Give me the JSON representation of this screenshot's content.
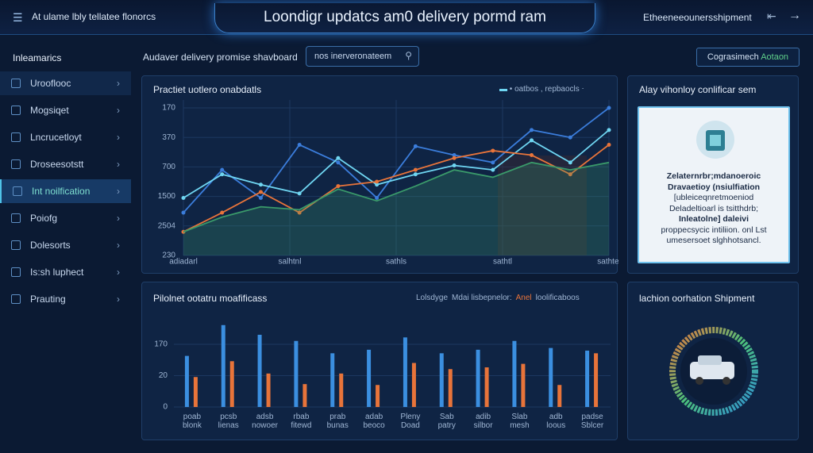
{
  "header": {
    "brand": "At ulame lbly tellatee flonorcs",
    "title": "Loondigr updatcs am0 delivery pormd ram",
    "right": "Etheeneeounersshipment"
  },
  "sidebar": {
    "heading": "Inleamarics",
    "items": [
      "Urooflooc",
      "Mogsiqet",
      "Lncrucetloyt",
      "Droseesotstt",
      "Int noilfication",
      "Poiofg",
      "Dolesorts",
      "Is:sh luphect",
      "Prauting"
    ],
    "active": 4
  },
  "toolbar": {
    "label": "Audaver delivery promise shavboard",
    "search": "nos inerveronateem",
    "button": "Cograsimech",
    "button_accent": "Aotaon"
  },
  "line_chart": {
    "type": "line",
    "title": "Practiet uotlero onabdatls",
    "legend": "oatbos , repbaocls",
    "ylabels": [
      "170",
      "370",
      "700",
      "1500",
      "2504",
      "230"
    ],
    "xlabels": [
      "adiadarl",
      "salhtnl",
      "sathls",
      "sathtl",
      "sathtel"
    ],
    "ylim": [
      0,
      100
    ],
    "series": [
      {
        "color": "#3b7ddb",
        "values": [
          29,
          58,
          39,
          75,
          63,
          39,
          74,
          68,
          63,
          85,
          80,
          100
        ]
      },
      {
        "color": "#6fd6f2",
        "values": [
          39,
          55,
          48,
          42,
          66,
          48,
          55,
          61,
          58,
          78,
          63,
          85
        ]
      },
      {
        "color": "#e8743a",
        "values": [
          16,
          29,
          43,
          29,
          47,
          50,
          58,
          66,
          71,
          68,
          55,
          75
        ]
      },
      {
        "color": "#3a9a6a",
        "area": true,
        "values": [
          16,
          26,
          33,
          31,
          45,
          37,
          47,
          58,
          53,
          63,
          58,
          63
        ]
      }
    ]
  },
  "bar_chart": {
    "type": "bar",
    "title": "Pilolnet ootatru moafificass",
    "legend": [
      "Lolsdyge",
      "Mdai lisbepnelor:",
      "Anel",
      "loolificaboos"
    ],
    "ylabels": [
      "170",
      "20",
      "0"
    ],
    "categories": [
      "poab blonk",
      "pcsb lienas",
      "adsb nowoer",
      "rbab fitewd",
      "prab bunas",
      "adab beoco",
      "Pleny Doad",
      "Sab patry",
      "adib silbor",
      "Slab mesh",
      "adb loous",
      "padse Sblcer"
    ],
    "ylim": [
      0,
      100
    ],
    "series": [
      {
        "color": "#3b8fe0",
        "values": [
          58,
          93,
          82,
          75,
          61,
          65,
          79,
          61,
          65,
          75,
          67,
          64
        ]
      },
      {
        "color": "#e8743a",
        "values": [
          34,
          52,
          38,
          26,
          38,
          25,
          50,
          43,
          45,
          49,
          25,
          61
        ]
      }
    ]
  },
  "card": {
    "title": "Alay vihonloy conlificar sem",
    "lines": [
      "Zelaternrbr;mdanoeroic",
      "Dravaetioy (nsiulfiation",
      "[ubleiceqnretmoeniod",
      "Deladeltioarl is tsitthdrb;",
      "Inleatolne] daleivi",
      "proppecsycic intiliion. onl Lst",
      "umesersoet slghhotsancl."
    ]
  },
  "shipment": {
    "title": "lachion oorhation Shipment"
  }
}
